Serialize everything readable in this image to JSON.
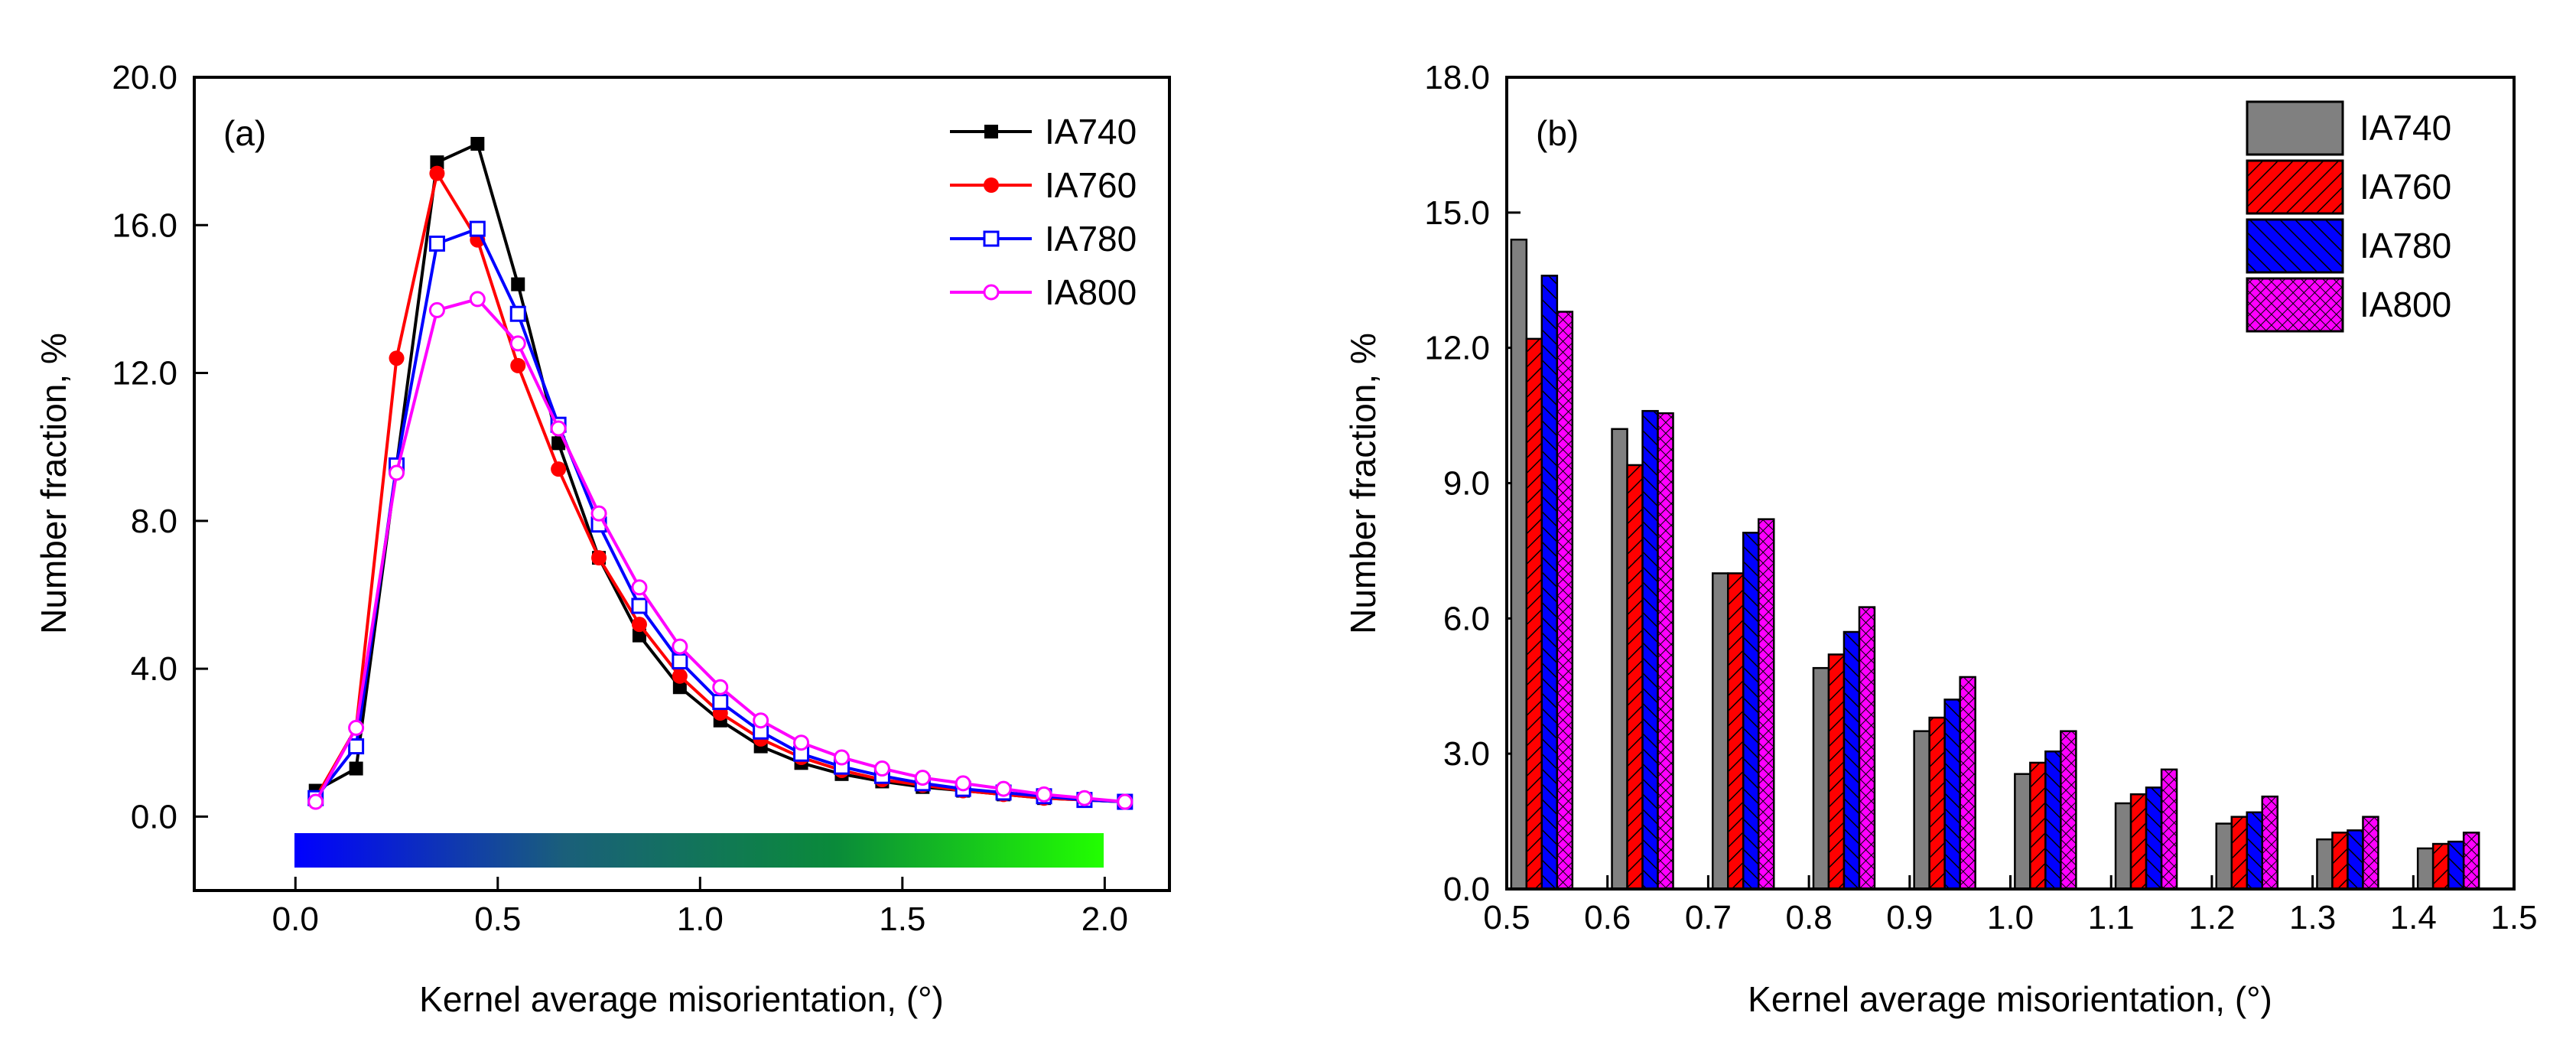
{
  "chart_data": [
    {
      "type": "line",
      "panel_label": "(a)",
      "xlabel": "Kernel average misorientation, (°)",
      "ylabel": "Number fraction, %",
      "xlim": [
        -0.25,
        2.16
      ],
      "ylim": [
        -2.0,
        20.0
      ],
      "xticks": [
        "0.0",
        "0.5",
        "1.0",
        "1.5",
        "2.0"
      ],
      "xtick_values": [
        0,
        0.5,
        1.0,
        1.5,
        2.0
      ],
      "yticks": [
        "20.0",
        "16.0",
        "12.0",
        "8.0",
        "4.0",
        "0.0"
      ],
      "ytick_values": [
        20,
        16,
        12,
        8,
        4,
        0
      ],
      "legend_position": "top-right",
      "colorbar": {
        "range": [
          0,
          2.0
        ],
        "colors": [
          "#0000ff",
          "#1a5f7a",
          "#0a8a3a",
          "#22ff00"
        ]
      },
      "x": [
        0.05,
        0.15,
        0.25,
        0.35,
        0.45,
        0.55,
        0.65,
        0.75,
        0.85,
        0.95,
        1.05,
        1.15,
        1.25,
        1.35,
        1.45,
        1.55,
        1.65,
        1.75,
        1.85,
        1.95,
        2.05
      ],
      "series": [
        {
          "name": "IA740",
          "color": "#000000",
          "marker": "square-filled",
          "values": [
            0.7,
            1.3,
            9.5,
            17.7,
            18.2,
            14.4,
            10.1,
            7.0,
            4.9,
            3.5,
            2.6,
            1.9,
            1.45,
            1.15,
            0.95,
            0.8,
            0.7,
            0.6,
            0.5,
            0.45,
            0.4
          ]
        },
        {
          "name": "IA760",
          "color": "#ff0000",
          "marker": "circle-filled",
          "values": [
            0.5,
            2.4,
            12.4,
            17.4,
            15.6,
            12.2,
            9.4,
            7.0,
            5.2,
            3.8,
            2.8,
            2.1,
            1.6,
            1.25,
            1.0,
            0.85,
            0.7,
            0.6,
            0.5,
            0.45,
            0.4
          ]
        },
        {
          "name": "IA780",
          "color": "#0000ff",
          "marker": "half-square",
          "values": [
            0.5,
            1.9,
            9.5,
            15.5,
            15.9,
            13.6,
            10.6,
            7.9,
            5.7,
            4.2,
            3.1,
            2.3,
            1.7,
            1.35,
            1.1,
            0.9,
            0.75,
            0.65,
            0.55,
            0.45,
            0.4
          ]
        },
        {
          "name": "IA800",
          "color": "#ff00ff",
          "marker": "circle-open",
          "values": [
            0.4,
            2.4,
            9.3,
            13.7,
            14.0,
            12.8,
            10.5,
            8.2,
            6.2,
            4.6,
            3.5,
            2.6,
            2.0,
            1.6,
            1.3,
            1.05,
            0.9,
            0.75,
            0.6,
            0.5,
            0.4
          ]
        }
      ]
    },
    {
      "type": "bar",
      "panel_label": "(b)",
      "xlabel": "Kernel average misorientation, (°)",
      "ylabel": "Number fraction, %",
      "xlim": [
        0.5,
        1.5
      ],
      "ylim": [
        0,
        18.0
      ],
      "xticks": [
        "0.5",
        "0.6",
        "0.7",
        "0.8",
        "0.9",
        "1.0",
        "1.1",
        "1.2",
        "1.3",
        "1.4",
        "1.5"
      ],
      "xtick_values": [
        0.5,
        0.6,
        0.7,
        0.8,
        0.9,
        1.0,
        1.1,
        1.2,
        1.3,
        1.4,
        1.5
      ],
      "yticks": [
        "18.0",
        "15.0",
        "12.0",
        "9.0",
        "6.0",
        "3.0",
        "0.0"
      ],
      "ytick_values": [
        18,
        15,
        12,
        9,
        6,
        3,
        0
      ],
      "legend_position": "top-right",
      "categories": [
        0.55,
        0.65,
        0.75,
        0.85,
        0.95,
        1.05,
        1.15,
        1.25,
        1.35,
        1.45
      ],
      "series": [
        {
          "name": "IA740",
          "color": "#808080",
          "pattern": "solid",
          "values": [
            14.4,
            10.2,
            7.0,
            4.9,
            3.5,
            2.55,
            1.9,
            1.45,
            1.1,
            0.9
          ]
        },
        {
          "name": "IA760",
          "color": "#ff0000",
          "pattern": "hatch-forward",
          "values": [
            12.2,
            9.4,
            7.0,
            5.2,
            3.8,
            2.8,
            2.1,
            1.6,
            1.25,
            1.0
          ]
        },
        {
          "name": "IA780",
          "color": "#0000ff",
          "pattern": "hatch-back",
          "values": [
            13.6,
            10.6,
            7.9,
            5.7,
            4.2,
            3.05,
            2.25,
            1.7,
            1.3,
            1.05
          ]
        },
        {
          "name": "IA800",
          "color": "#ff00ff",
          "pattern": "crosshatch",
          "values": [
            12.8,
            10.55,
            8.2,
            6.25,
            4.7,
            3.5,
            2.65,
            2.05,
            1.6,
            1.25
          ]
        }
      ]
    }
  ]
}
